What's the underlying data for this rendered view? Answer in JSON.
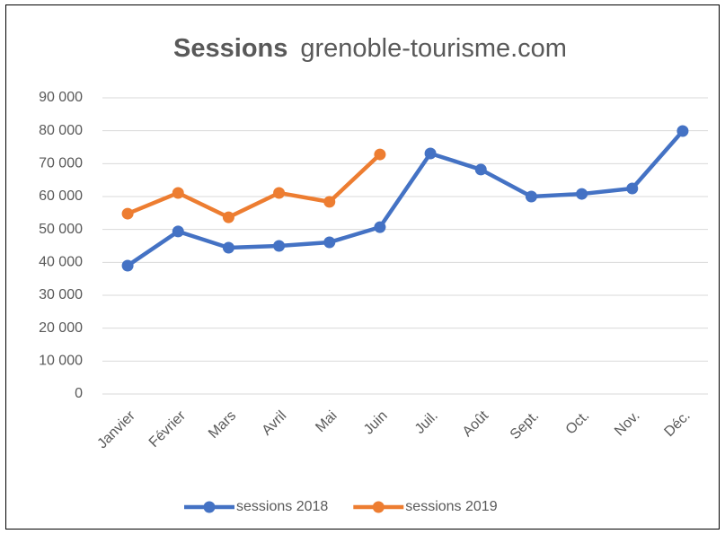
{
  "chart_data": {
    "type": "line",
    "title": "Sessions",
    "subtitle": "grenoble-tourisme.com",
    "categories": [
      "Janvier",
      "Février",
      "Mars",
      "Avril",
      "Mai",
      "Juin",
      "Juil.",
      "Août",
      "Sept.",
      "Oct.",
      "Nov.",
      "Déc."
    ],
    "series": [
      {
        "name": "sessions 2018",
        "color": "#4472c4",
        "values": [
          39000,
          49400,
          44450,
          45000,
          46100,
          50700,
          73100,
          68200,
          60000,
          60800,
          62450,
          79900
        ]
      },
      {
        "name": "sessions 2019",
        "color": "#ed7d31",
        "values": [
          54800,
          61100,
          53700,
          61100,
          58400,
          72800,
          null,
          null,
          null,
          null,
          null,
          null
        ]
      }
    ],
    "ylim": [
      0,
      90000
    ],
    "yticks": [
      0,
      {
        "value": 10000,
        "label": "10 000"
      },
      {
        "value": 20000,
        "label": "20 000"
      },
      {
        "value": 30000,
        "label": "30 000"
      },
      {
        "value": 40000,
        "label": "40 000"
      },
      {
        "value": 50000,
        "label": "50 000"
      },
      {
        "value": 60000,
        "label": "60 000"
      },
      {
        "value": 70000,
        "label": "70 000"
      },
      {
        "value": 80000,
        "label": "80 000"
      },
      {
        "value": 90000,
        "label": "90 000"
      }
    ],
    "grid": true,
    "legend": "bottom"
  }
}
